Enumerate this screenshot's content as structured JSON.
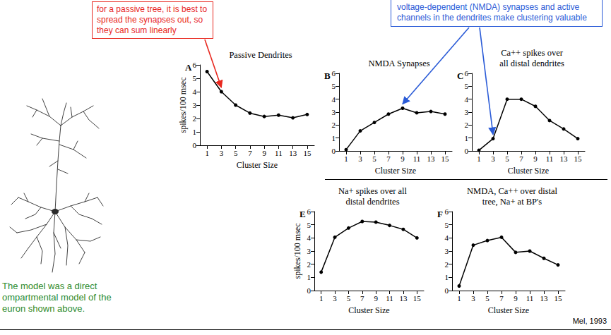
{
  "chart_data": [
    {
      "type": "line",
      "letter": "A",
      "title": "Passive Dendrites",
      "x_label": "Cluster Size",
      "y_label": "spikes/100 msec",
      "x": [
        1,
        3,
        5,
        7,
        9,
        11,
        13,
        15
      ],
      "values": [
        5.5,
        4.0,
        3.0,
        2.4,
        2.15,
        2.25,
        2.05,
        2.3
      ],
      "xlim": [
        0,
        16
      ],
      "xticks": [
        1,
        3,
        5,
        7,
        9,
        11,
        13,
        15
      ],
      "ylim": [
        0,
        6
      ],
      "yticks": [
        0,
        1,
        2,
        3,
        4,
        5,
        6
      ],
      "color": "#000000",
      "marker": "circle",
      "line_style": "solid",
      "grid": false
    },
    {
      "type": "line",
      "letter": "B",
      "title": "NMDA Synapses",
      "x_label": "Cluster Size",
      "x": [
        1,
        3,
        5,
        7,
        9,
        11,
        13,
        15
      ],
      "values": [
        0.1,
        1.55,
        2.2,
        2.85,
        3.3,
        2.95,
        3.05,
        2.85
      ],
      "xlim": [
        0,
        16
      ],
      "xticks": [
        1,
        3,
        5,
        7,
        9,
        11,
        13,
        15
      ],
      "ylim": [
        0,
        6
      ],
      "yticks": [
        0,
        1,
        2,
        3,
        4,
        5,
        6
      ],
      "color": "#000000",
      "marker": "circle",
      "line_style": "solid",
      "grid": false
    },
    {
      "type": "line",
      "letter": "C",
      "title": "Ca++ spikes over all distal dendrites",
      "x_label": "Cluster Size",
      "x": [
        1,
        3,
        5,
        7,
        9,
        11,
        13,
        15
      ],
      "values": [
        0.05,
        0.95,
        4.0,
        4.0,
        3.45,
        2.35,
        1.7,
        0.95
      ],
      "xlim": [
        0,
        16
      ],
      "xticks": [
        1,
        3,
        5,
        7,
        9,
        11,
        13,
        15
      ],
      "ylim": [
        0,
        6
      ],
      "yticks": [
        0,
        1,
        2,
        3,
        4,
        5,
        6
      ],
      "color": "#000000",
      "marker": "circle",
      "line_style": "solid",
      "grid": false
    },
    {
      "type": "line",
      "letter": "E",
      "title": "Na+ spikes over all distal dendrites",
      "x_label": "Cluster Size",
      "y_label": "spikes/100 msec",
      "x": [
        1,
        3,
        5,
        7,
        9,
        11,
        13,
        15
      ],
      "values": [
        1.4,
        4.05,
        4.75,
        5.25,
        5.2,
        4.95,
        4.65,
        4.0
      ],
      "xlim": [
        0,
        16
      ],
      "xticks": [
        1,
        3,
        5,
        7,
        9,
        11,
        13,
        15
      ],
      "ylim": [
        0,
        6
      ],
      "yticks": [
        0,
        1,
        2,
        3,
        4,
        5,
        6
      ],
      "color": "#000000",
      "marker": "circle",
      "line_style": "solid",
      "grid": false
    },
    {
      "type": "line",
      "letter": "F",
      "title": "NMDA, Ca++ over distal tree, Na+ at BP's",
      "x_label": "Cluster Size",
      "x": [
        1,
        3,
        5,
        7,
        9,
        11,
        13,
        15
      ],
      "values": [
        0.35,
        3.45,
        3.8,
        4.05,
        2.9,
        3.0,
        2.45,
        1.95
      ],
      "xlim": [
        0,
        16
      ],
      "xticks": [
        1,
        3,
        5,
        7,
        9,
        11,
        13,
        15
      ],
      "ylim": [
        0,
        6
      ],
      "yticks": [
        0,
        1,
        2,
        3,
        4,
        5,
        6
      ],
      "color": "#000000",
      "marker": "circle",
      "line_style": "solid",
      "grid": false
    }
  ],
  "annotations": [
    {
      "text": "for a passive tree, it is best to spread the synapses out, so they can sum linearly",
      "color": "#e8281f",
      "points_to": [
        "A"
      ]
    },
    {
      "text": "voltage-dependent (NMDA) synapses and active channels in the dendrites make clustering valuable",
      "color": "#2a5bd7",
      "points_to": [
        "B",
        "C"
      ]
    }
  ],
  "caption": {
    "lines": [
      "The model was a direct",
      "ompartmental model of the",
      "euron shown above."
    ],
    "color": "#2e8b2e"
  },
  "credit": "Mel, 1993"
}
